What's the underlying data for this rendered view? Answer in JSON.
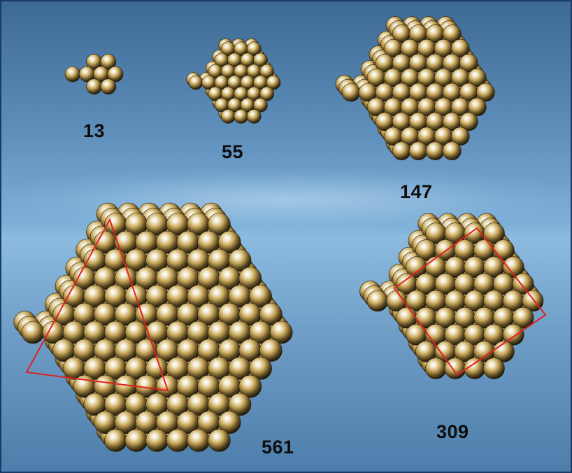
{
  "clusters": [
    {
      "id": "13",
      "label": "13"
    },
    {
      "id": "55",
      "label": "55"
    },
    {
      "id": "147",
      "label": "147"
    },
    {
      "id": "561",
      "label": "561"
    },
    {
      "id": "309",
      "label": "309"
    }
  ],
  "colors": {
    "sphere_highlight": "#ffffff",
    "sphere_gold": "#c9a85a",
    "sphere_dark": "#1a1408",
    "outline": "#e02020",
    "label": "#0d0d0d"
  }
}
